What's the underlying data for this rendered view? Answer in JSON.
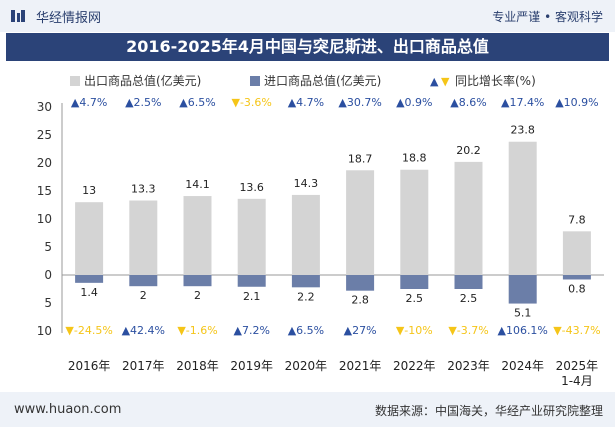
{
  "header": {
    "brand": "华经情报网",
    "slogan": "专业严谨 • 客观科学",
    "title": "2016-2025年4月中国与突尼斯进、出口商品总值"
  },
  "footer": {
    "site": "www.huaon.com",
    "source": "数据来源：中国海关，华经产业研究院整理"
  },
  "colors": {
    "export": "#d4d4d4",
    "import": "#6b7ea8",
    "up": "#2b4fa0",
    "down": "#f5c518",
    "title_bg": "#2b4378"
  },
  "chart_data": {
    "type": "bar",
    "categories": [
      "2016年",
      "2017年",
      "2018年",
      "2019年",
      "2020年",
      "2021年",
      "2022年",
      "2023年",
      "2024年",
      "2025年\n1-4月"
    ],
    "series": [
      {
        "name": "出口商品总值(亿美元)",
        "values": [
          13,
          13.3,
          14.1,
          13.6,
          14.3,
          18.7,
          18.8,
          20.2,
          23.8,
          7.8
        ],
        "direction": "up"
      },
      {
        "name": "进口商品总值(亿美元)",
        "values": [
          1.4,
          2,
          2,
          2.1,
          2.2,
          2.8,
          2.5,
          2.5,
          5.1,
          0.8
        ],
        "direction": "down"
      }
    ],
    "growth_name": "同比增长率(%)",
    "export_growth": [
      "4.7%",
      "2.5%",
      "6.5%",
      "-3.6%",
      "4.7%",
      "30.7%",
      "0.9%",
      "8.6%",
      "17.4%",
      "10.9%"
    ],
    "import_growth": [
      "-24.5%",
      "42.4%",
      "-1.6%",
      "7.2%",
      "6.5%",
      "27%",
      "-10%",
      "-3.7%",
      "106.1%",
      "-43.7%"
    ],
    "y_ticks_top": [
      30,
      25,
      20,
      15,
      10,
      5,
      0
    ],
    "y_ticks_bottom": [
      5,
      10
    ],
    "ylim": [
      -10,
      30
    ]
  }
}
